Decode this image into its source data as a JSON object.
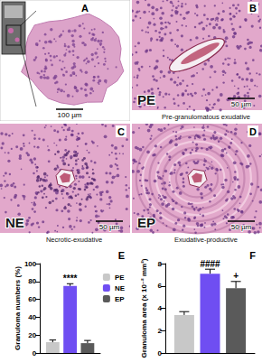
{
  "panels": [
    {
      "letter": "A",
      "scale_bar": "100 µm"
    },
    {
      "letter": "B",
      "abbreviation": "PE",
      "caption": "Pre-granulomatous exudative",
      "scale_bar": "50 µm"
    },
    {
      "letter": "C",
      "abbreviation": "NE",
      "caption": "Necrotic-exudative",
      "scale_bar": "50 µm"
    },
    {
      "letter": "D",
      "abbreviation": "EP",
      "caption": "Exudative-productive",
      "scale_bar": "50 µm"
    }
  ],
  "chart_data": [
    {
      "type": "bar",
      "panel": "E",
      "y_label": "Granuloma numbers (%)",
      "categories": [
        null
      ],
      "series": [
        {
          "name": "PE",
          "color": "#c8c8c8",
          "values": [
            12
          ],
          "errors": [
            2.5
          ]
        },
        {
          "name": "NE",
          "color": "#6f4ef2",
          "values": [
            75
          ],
          "errors": [
            2.5
          ]
        },
        {
          "name": "EP",
          "color": "#5a5a5a",
          "values": [
            11
          ],
          "errors": [
            3
          ]
        }
      ],
      "annotations": [
        {
          "series": "NE",
          "text": "****"
        }
      ],
      "ylim": [
        0,
        100
      ],
      "yticks": [
        0,
        20,
        40,
        60,
        80,
        100
      ],
      "grid": false,
      "legend": "right"
    },
    {
      "type": "bar",
      "panel": "F",
      "y_label": "Granuloma area (x 10⁻² mm²)",
      "categories": [
        null
      ],
      "series": [
        {
          "name": "PE",
          "color": "#c8c8c8",
          "values": [
            3.4
          ],
          "errors": [
            0.3
          ]
        },
        {
          "name": "NE",
          "color": "#6f4ef2",
          "values": [
            7.1
          ],
          "errors": [
            0.4
          ]
        },
        {
          "name": "EP",
          "color": "#5a5a5a",
          "values": [
            5.8
          ],
          "errors": [
            0.6
          ]
        }
      ],
      "annotations": [
        {
          "series": "NE",
          "text": "####"
        },
        {
          "series": "EP",
          "text": "+"
        }
      ],
      "ylim": [
        0,
        8
      ],
      "yticks": [
        0,
        2,
        4,
        6,
        8
      ],
      "grid": false
    }
  ]
}
